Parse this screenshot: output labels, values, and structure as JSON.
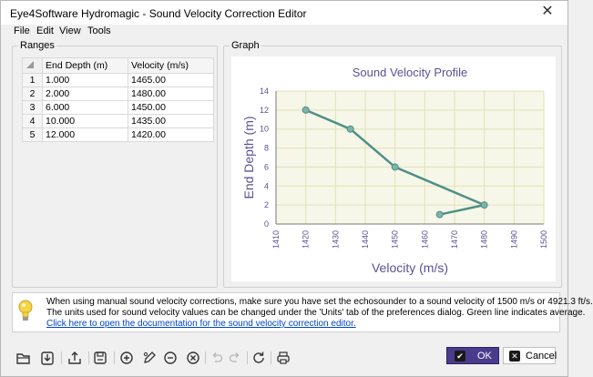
{
  "window": {
    "title": "Eye4Software Hydromagic - Sound Velocity Correction Editor"
  },
  "menu": [
    "File",
    "Edit",
    "View",
    "Tools"
  ],
  "ranges": {
    "title": "Ranges",
    "columns": [
      "End Depth (m)",
      "Velocity (m/s)"
    ],
    "rows": [
      {
        "n": "1",
        "depth": "1.000",
        "velocity": "1465.00"
      },
      {
        "n": "2",
        "depth": "2.000",
        "velocity": "1480.00"
      },
      {
        "n": "3",
        "depth": "6.000",
        "velocity": "1450.00"
      },
      {
        "n": "4",
        "depth": "10.000",
        "velocity": "1435.00"
      },
      {
        "n": "5",
        "depth": "12.000",
        "velocity": "1420.00"
      }
    ]
  },
  "graph": {
    "title": "Graph"
  },
  "chart_data": {
    "type": "line",
    "title": "Sound Velocity Profile",
    "xlabel": "Velocity (m/s)",
    "ylabel": "End Depth (m)",
    "xlim": [
      1410,
      1500
    ],
    "ylim": [
      0,
      14
    ],
    "xticks": [
      "1410",
      "1420",
      "1430",
      "1440",
      "1450",
      "1460",
      "1470",
      "1480",
      "1490",
      "1500"
    ],
    "yticks": [
      "0",
      "2",
      "4",
      "6",
      "8",
      "10",
      "12",
      "14"
    ],
    "grid": true,
    "colors": {
      "line": "#4e8f87",
      "title": "#5c5096",
      "background": "#f6f7e8",
      "grid": "#e0e2b8"
    },
    "series": [
      {
        "x": [
          1420,
          1435,
          1450,
          1480,
          1465
        ],
        "y": [
          12,
          10,
          6,
          2,
          1
        ]
      }
    ]
  },
  "info": {
    "line1": "When using manual sound velocity corrections, make sure you have set the echosounder to a sound velocity of 1500 m/s or 4921.3 ft/s.",
    "line2": "The units used for sound velocity values can be changed under the 'Units' tab of the preferences dialog. Green line indicates average.",
    "link": "Click here to open the documentation for the sound velocity correction editor."
  },
  "toolbar_icons": [
    "open-icon",
    "import-icon",
    "export-icon",
    "save-icon",
    "add-icon",
    "edit-icon",
    "remove-icon",
    "delete-icon",
    "undo-icon",
    "redo-icon",
    "refresh-icon",
    "print-icon"
  ],
  "buttons": {
    "ok": "OK",
    "cancel": "Cancel"
  }
}
